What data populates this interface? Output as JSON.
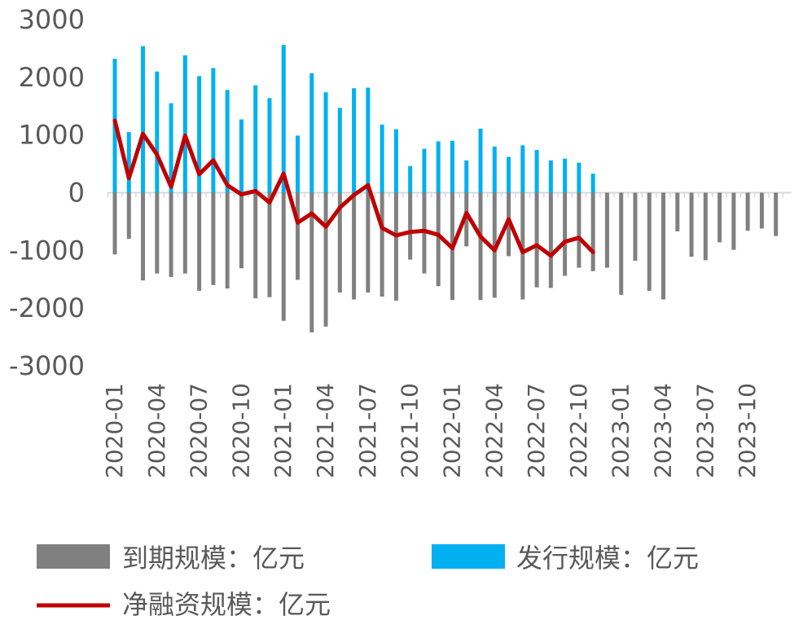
{
  "chart_data": {
    "type": "bar",
    "title": "",
    "xlabel": "",
    "ylabel": "",
    "ylim": [
      -3000,
      3000
    ],
    "yticks": [
      3000,
      2000,
      1000,
      0,
      -1000,
      -2000,
      -3000
    ],
    "x_tick_labels": [
      "2020-01",
      "2020-04",
      "2020-07",
      "2020-10",
      "2021-01",
      "2021-04",
      "2021-07",
      "2021-10",
      "2022-01",
      "2022-04",
      "2022-07",
      "2022-10",
      "2023-01",
      "2023-04",
      "2023-07",
      "2023-10"
    ],
    "categories": [
      "2020-01",
      "2020-02",
      "2020-03",
      "2020-04",
      "2020-05",
      "2020-06",
      "2020-07",
      "2020-08",
      "2020-09",
      "2020-10",
      "2020-11",
      "2020-12",
      "2021-01",
      "2021-02",
      "2021-03",
      "2021-04",
      "2021-05",
      "2021-06",
      "2021-07",
      "2021-08",
      "2021-09",
      "2021-10",
      "2021-11",
      "2021-12",
      "2022-01",
      "2022-02",
      "2022-03",
      "2022-04",
      "2022-05",
      "2022-06",
      "2022-07",
      "2022-08",
      "2022-09",
      "2022-10",
      "2022-11",
      "2022-12",
      "2023-01",
      "2023-02",
      "2023-03",
      "2023-04",
      "2023-05",
      "2023-06",
      "2023-07",
      "2023-08",
      "2023-09",
      "2023-10",
      "2023-11",
      "2023-12"
    ],
    "series": [
      {
        "name": "到期规模：亿元",
        "type": "bar",
        "color": "#808080",
        "values": [
          -1070,
          -800,
          -1520,
          -1400,
          -1460,
          -1400,
          -1700,
          -1600,
          -1660,
          -1310,
          -1830,
          -1810,
          -2220,
          -1510,
          -2420,
          -2320,
          -1730,
          -1850,
          -1730,
          -1800,
          -1870,
          -1160,
          -1400,
          -1620,
          -1860,
          -930,
          -1860,
          -1820,
          -1100,
          -1850,
          -1640,
          -1650,
          -1440,
          -1300,
          -1360,
          -1300,
          -1770,
          -1180,
          -1700,
          -1850,
          -670,
          -1110,
          -1170,
          -860,
          -990,
          -660,
          -620,
          -750
        ]
      },
      {
        "name": "发行规模：亿元",
        "type": "bar",
        "color": "#00b0f0",
        "values": [
          2320,
          1050,
          2540,
          2100,
          1550,
          2380,
          2020,
          2160,
          1780,
          1270,
          1860,
          1640,
          2560,
          990,
          2070,
          1740,
          1470,
          1810,
          1820,
          1180,
          1100,
          460,
          760,
          890,
          900,
          560,
          1110,
          800,
          620,
          820,
          740,
          560,
          590,
          520,
          330,
          null,
          null,
          null,
          null,
          null,
          null,
          null,
          null,
          null,
          null,
          null,
          null,
          null
        ]
      },
      {
        "name": "净融资规模：亿元",
        "type": "line",
        "color": "#c00000",
        "values": [
          1250,
          250,
          1020,
          660,
          100,
          990,
          320,
          560,
          130,
          -30,
          30,
          -170,
          330,
          -520,
          -360,
          -590,
          -260,
          -40,
          130,
          -610,
          -740,
          -680,
          -660,
          -730,
          -960,
          -350,
          -760,
          -1000,
          -460,
          -1030,
          -910,
          -1090,
          -850,
          -780,
          -1030,
          null,
          null,
          null,
          null,
          null,
          null,
          null,
          null,
          null,
          null,
          null,
          null,
          null
        ]
      }
    ],
    "grid": false,
    "legend": "bottom"
  }
}
